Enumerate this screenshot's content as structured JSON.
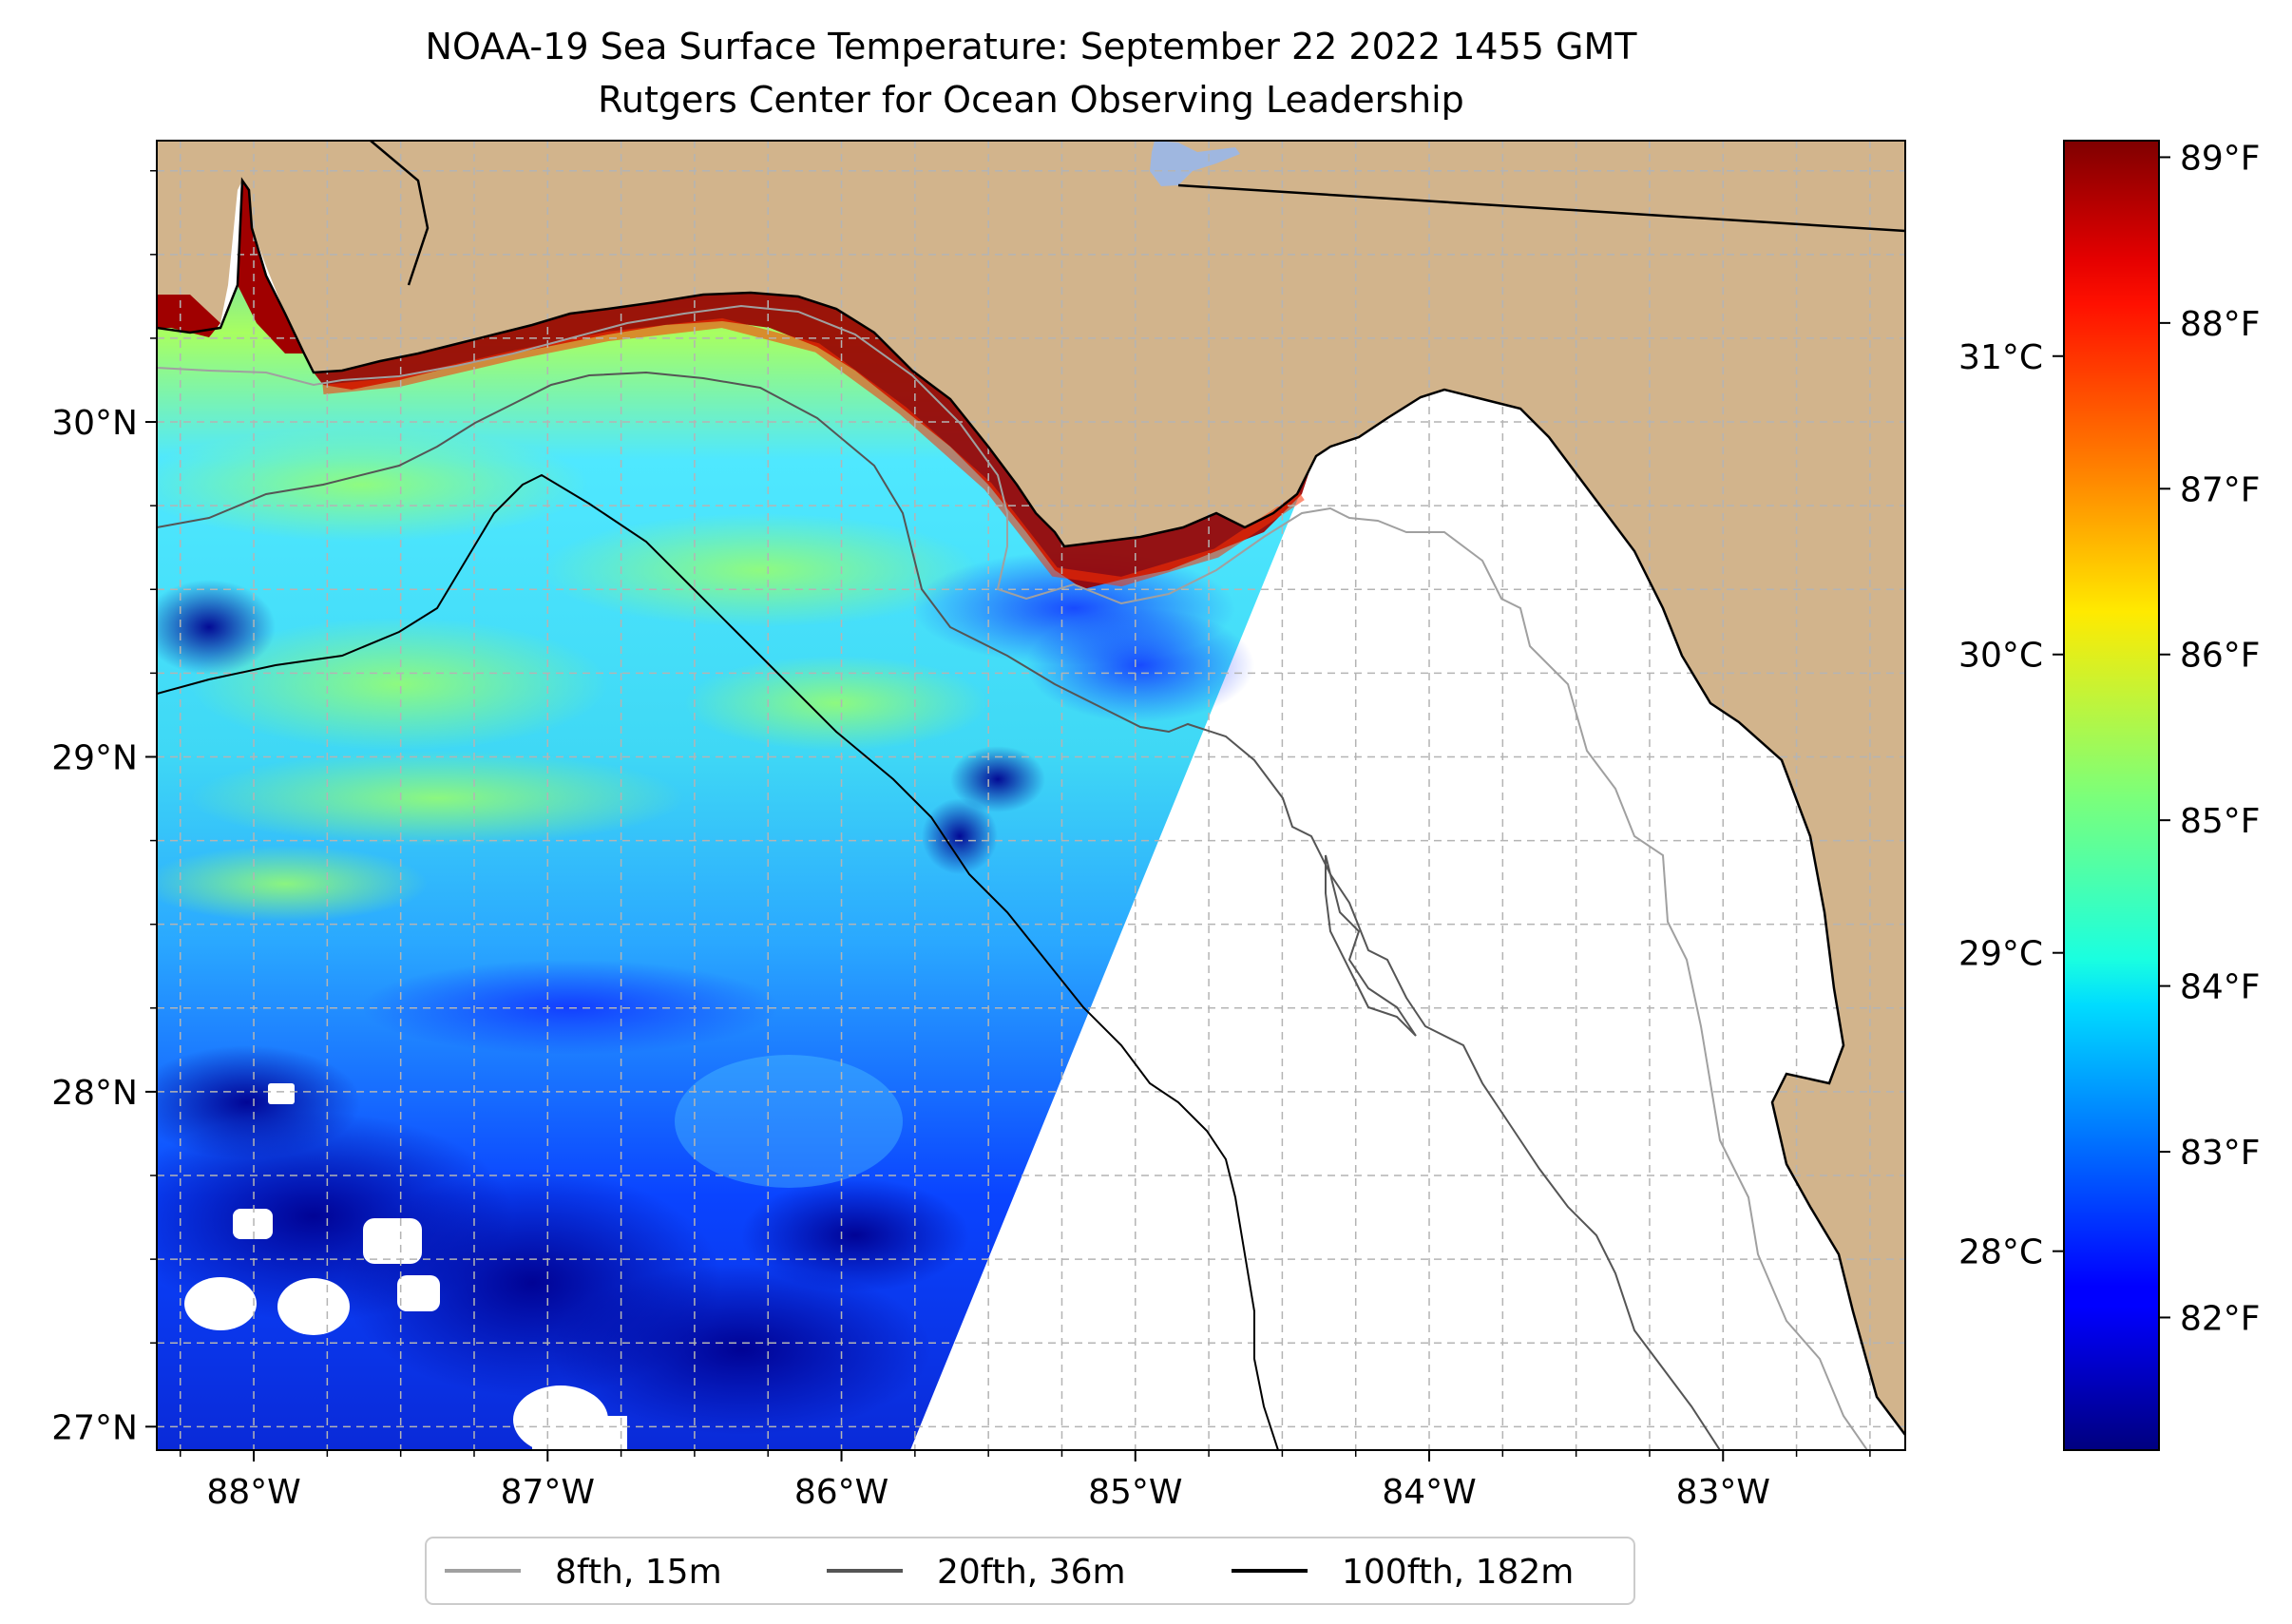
{
  "title": {
    "line1": "NOAA-19 Sea Surface Temperature: September 22 2022 1455 GMT",
    "line2": "Rutgers Center for Ocean Observing Leadership"
  },
  "map": {
    "lon_range": [
      -88.33,
      -82.38
    ],
    "lat_range": [
      26.93,
      30.84
    ],
    "lon_ticks": [
      -88,
      -87,
      -86,
      -85,
      -84,
      -83
    ],
    "lon_tick_labels": [
      "88°W",
      "87°W",
      "86°W",
      "85°W",
      "84°W",
      "83°W"
    ],
    "lat_ticks": [
      27,
      28,
      29,
      30
    ],
    "lat_tick_labels": [
      "27°N",
      "28°N",
      "29°N",
      "30°N"
    ],
    "gridlines": true,
    "land_color": "#d2b48c",
    "lake_color": "#9fb7e0"
  },
  "colorbar": {
    "colormap": "jet",
    "f_ticks": [
      82,
      83,
      84,
      85,
      86,
      87,
      88,
      89
    ],
    "f_labels": [
      "82°F",
      "83°F",
      "84°F",
      "85°F",
      "86°F",
      "87°F",
      "88°F",
      "89°F"
    ],
    "c_ticks": [
      28,
      29,
      30,
      31
    ],
    "c_labels": [
      "28°C",
      "29°C",
      "30°C",
      "31°C"
    ],
    "range_f": [
      81.2,
      89.1
    ]
  },
  "legend": {
    "placement": "bottom-center",
    "items": [
      {
        "label": "8fth, 15m",
        "color": "#a0a0a0"
      },
      {
        "label": "20fth, 36m",
        "color": "#555555"
      },
      {
        "label": "100fth, 182m",
        "color": "#000000"
      }
    ]
  }
}
